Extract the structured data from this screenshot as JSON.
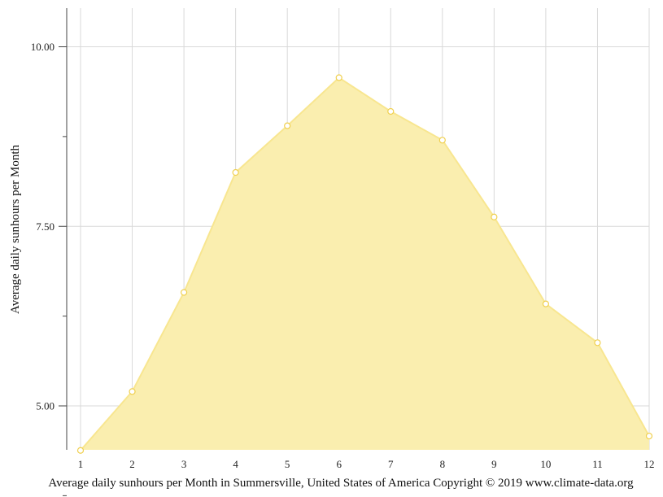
{
  "chart_data": {
    "type": "area",
    "x": [
      1,
      2,
      3,
      4,
      5,
      6,
      7,
      8,
      9,
      10,
      11,
      12
    ],
    "values": [
      4.38,
      5.2,
      6.58,
      8.25,
      8.9,
      9.57,
      9.1,
      8.7,
      7.63,
      6.42,
      5.88,
      4.58
    ],
    "x_tick_labels": [
      "1",
      "2",
      "3",
      "4",
      "5",
      "6",
      "7",
      "8",
      "9",
      "10",
      "11",
      "12"
    ],
    "y_tick_labels": [
      "5.00",
      "7.50",
      "10.00"
    ],
    "y_ticks": [
      5.0,
      7.5,
      10.0
    ],
    "ylabel": "Average daily sunhours per Month",
    "xlabel": "",
    "caption": "Average daily sunhours per Month in Summersville, United States of America Copyright © 2019 www.climate-data.org",
    "xlim": [
      1,
      12
    ],
    "ylim": [
      4.38,
      10.52
    ],
    "grid": true,
    "legend": "none",
    "colors": {
      "fill": "#faeeaf",
      "line": "#f8e690",
      "marker_stroke": "#f0d050",
      "marker_fill": "#ffffff"
    }
  }
}
